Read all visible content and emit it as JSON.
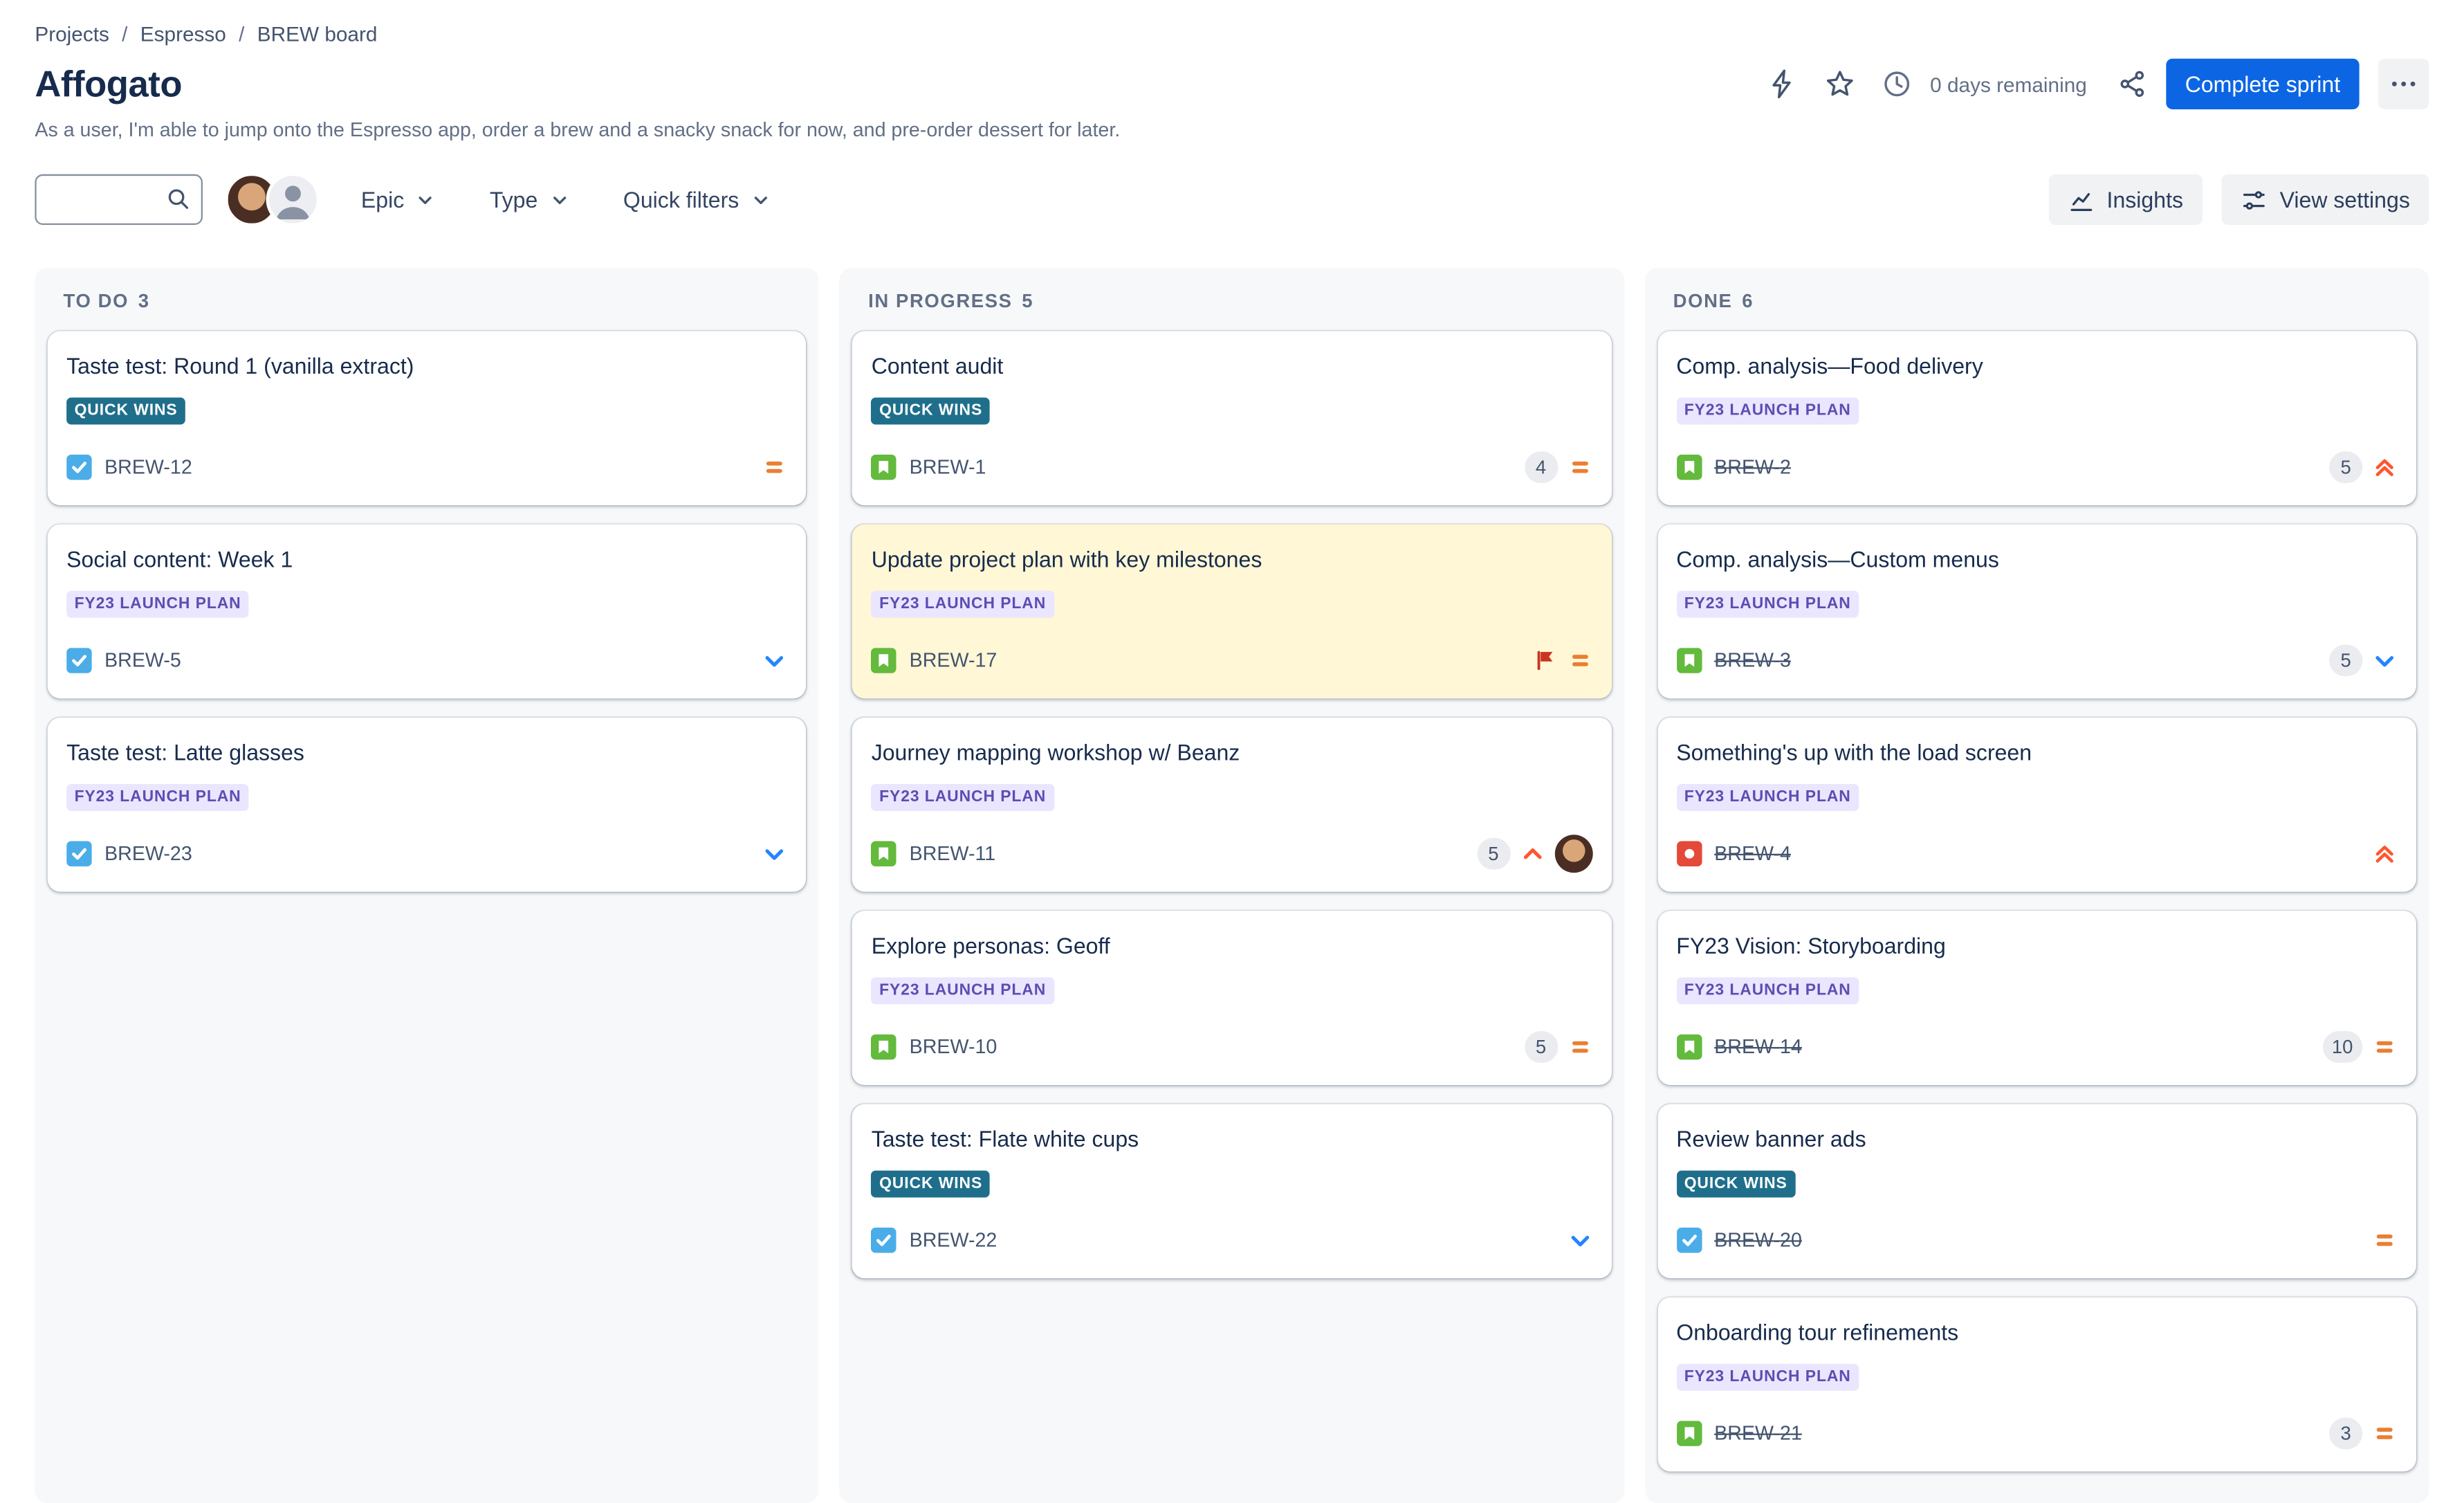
{
  "breadcrumb": {
    "separator": "/",
    "items": [
      {
        "label": "Projects"
      },
      {
        "label": "Espresso"
      },
      {
        "label": "BREW board"
      }
    ]
  },
  "header": {
    "title": "Affogato",
    "subtitle": "As a user, I'm able to jump onto the Espresso app, order a brew and a snacky snack for now, and pre-order dessert for later.",
    "days_remaining": "0 days remaining",
    "complete_sprint_label": "Complete sprint"
  },
  "toolbar": {
    "search": {
      "placeholder": "",
      "value": ""
    },
    "filters": [
      {
        "label": "Epic"
      },
      {
        "label": "Type"
      },
      {
        "label": "Quick filters"
      }
    ],
    "insights_label": "Insights",
    "view_settings_label": "View settings"
  },
  "icons": {
    "sprint_capacity": "lightning-bolt",
    "favourite": "star",
    "time": "clock",
    "share": "share-nodes",
    "more": "ellipsis",
    "search": "magnifier",
    "insights": "line-chart",
    "view_settings": "sliders",
    "dropdown": "chevron-down",
    "type_task": "blue-square-white-check",
    "type_story": "green-square-white-bookmark",
    "type_bug": "red-square-white-dot",
    "priority_medium": "orange-equals",
    "priority_low": "blue-chevron-down",
    "priority_high": "red-chevron-up",
    "priority_highest": "red-double-chevron-up",
    "flag": "red-flag"
  },
  "colors": {
    "primary_button": "#0C66E4",
    "flagged_card_bg": "#FFF7D6",
    "column_bg": "#F7F8F9",
    "epic_quick_wins_bg": "#1F6F8C",
    "epic_fy23_bg": "#EAE6FF",
    "epic_fy23_text": "#5E4DB2",
    "type_task": "#4BADE8",
    "type_story": "#63BA3C",
    "type_bug": "#E5493A",
    "priority_medium": "#E97F33",
    "priority_low": "#2684FF",
    "priority_high": "#FF5630",
    "priority_highest": "#FF5630",
    "flag": "#CA3521"
  },
  "board": {
    "columns": [
      {
        "title": "TO DO",
        "count": "3",
        "cards": [
          {
            "title": "Taste test: Round 1 (vanilla extract)",
            "epic": "QUICK WINS",
            "epic_style": "quick-wins",
            "type": "task",
            "key": "BREW-12",
            "priority": "medium"
          },
          {
            "title": "Social content: Week 1",
            "epic": "FY23 LAUNCH PLAN",
            "epic_style": "fy23",
            "type": "task",
            "key": "BREW-5",
            "priority": "low"
          },
          {
            "title": "Taste test: Latte glasses",
            "epic": "FY23 LAUNCH PLAN",
            "epic_style": "fy23",
            "type": "task",
            "key": "BREW-23",
            "priority": "low"
          }
        ]
      },
      {
        "title": "IN PROGRESS",
        "count": "5",
        "cards": [
          {
            "title": "Content audit",
            "epic": "QUICK WINS",
            "epic_style": "quick-wins",
            "type": "story",
            "key": "BREW-1",
            "estimate": "4",
            "priority": "medium"
          },
          {
            "title": "Update project plan with key milestones",
            "epic": "FY23 LAUNCH PLAN",
            "epic_style": "fy23",
            "type": "story",
            "key": "BREW-17",
            "flagged": true,
            "priority": "medium"
          },
          {
            "title": "Journey mapping workshop w/ Beanz",
            "epic": "FY23 LAUNCH PLAN",
            "epic_style": "fy23",
            "type": "story",
            "key": "BREW-11",
            "estimate": "5",
            "priority": "high",
            "assignee": true
          },
          {
            "title": "Explore personas: Geoff",
            "epic": "FY23 LAUNCH PLAN",
            "epic_style": "fy23",
            "type": "story",
            "key": "BREW-10",
            "estimate": "5",
            "priority": "medium"
          },
          {
            "title": "Taste test: Flate white cups",
            "epic": "QUICK WINS",
            "epic_style": "quick-wins",
            "type": "task",
            "key": "BREW-22",
            "priority": "low"
          }
        ]
      },
      {
        "title": "DONE",
        "count": "6",
        "cards": [
          {
            "title": "Comp. analysis—Food delivery",
            "epic": "FY23 LAUNCH PLAN",
            "epic_style": "fy23",
            "type": "story",
            "key": "BREW-2",
            "done": true,
            "estimate": "5",
            "priority": "highest"
          },
          {
            "title": "Comp. analysis—Custom menus",
            "epic": "FY23 LAUNCH PLAN",
            "epic_style": "fy23",
            "type": "story",
            "key": "BREW-3",
            "done": true,
            "estimate": "5",
            "priority": "low"
          },
          {
            "title": "Something's up with the load screen",
            "epic": "FY23 LAUNCH PLAN",
            "epic_style": "fy23",
            "type": "bug",
            "key": "BREW-4",
            "done": true,
            "priority": "highest"
          },
          {
            "title": "FY23 Vision: Storyboarding",
            "epic": "FY23 LAUNCH PLAN",
            "epic_style": "fy23",
            "type": "story",
            "key": "BREW-14",
            "done": true,
            "estimate": "10",
            "priority": "medium"
          },
          {
            "title": "Review banner ads",
            "epic": "QUICK WINS",
            "epic_style": "quick-wins",
            "type": "task",
            "key": "BREW-20",
            "done": true,
            "priority": "medium"
          },
          {
            "title": "Onboarding tour refinements",
            "epic": "FY23 LAUNCH PLAN",
            "epic_style": "fy23",
            "type": "story",
            "key": "BREW-21",
            "done": true,
            "estimate": "3",
            "priority": "medium"
          }
        ]
      }
    ]
  }
}
